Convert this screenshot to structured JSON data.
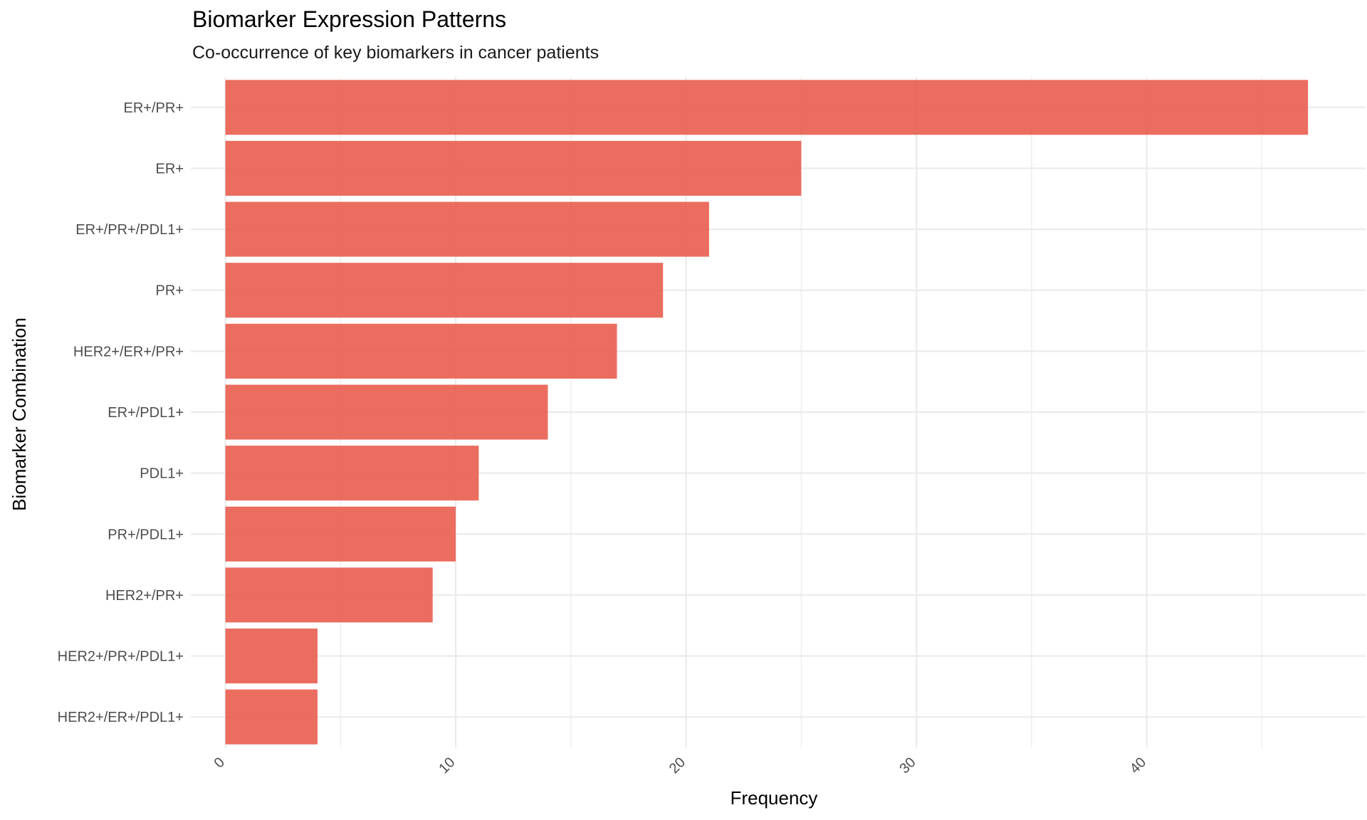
{
  "chart_data": {
    "type": "bar",
    "orientation": "horizontal",
    "title": "Biomarker Expression Patterns",
    "subtitle": "Co-occurrence of key biomarkers in cancer patients",
    "xlabel": "Frequency",
    "ylabel": "Biomarker Combination",
    "categories": [
      "ER+/PR+",
      "ER+",
      "ER+/PR+/PDL1+",
      "PR+",
      "HER2+/ER+/PR+",
      "ER+/PDL1+",
      "PDL1+",
      "PR+/PDL1+",
      "HER2+/PR+",
      "HER2+/PR+/PDL1+",
      "HER2+/ER+/PDL1+"
    ],
    "values": [
      47,
      25,
      21,
      19,
      17,
      14,
      11,
      10,
      9,
      4,
      4
    ],
    "x_ticks": [
      "0",
      "10",
      "20",
      "30",
      "40"
    ],
    "x_tick_values": [
      0,
      10,
      20,
      30,
      40
    ],
    "xlim": [
      -1.5,
      49.5
    ],
    "grid": true,
    "bar_color": "#e8594a",
    "grid_color": "#ebebeb"
  }
}
